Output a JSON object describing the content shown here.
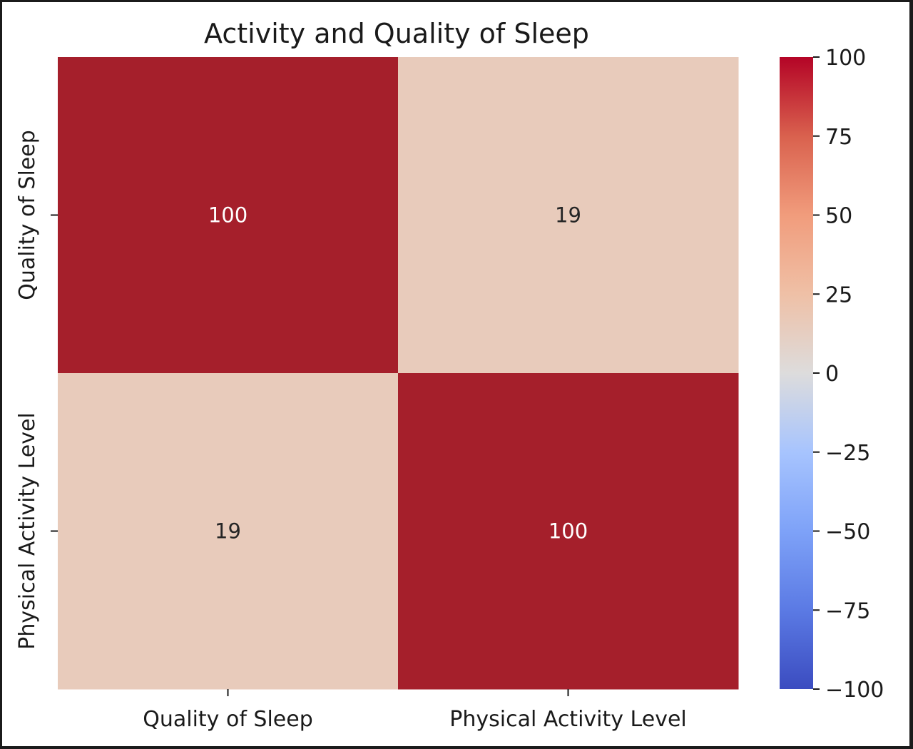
{
  "chart_data": {
    "type": "heatmap",
    "title": "Activity and Quality of Sleep",
    "x_labels": [
      "Quality of Sleep",
      "Physical Activity Level"
    ],
    "y_labels": [
      "Quality of Sleep",
      "Physical Activity Level"
    ],
    "values": [
      [
        100,
        19
      ],
      [
        19,
        100
      ]
    ],
    "cell_labels": [
      [
        "100",
        "19"
      ],
      [
        "19",
        "100"
      ]
    ],
    "colormap": "coolwarm",
    "vmin": -100,
    "vmax": 100,
    "colorbar_ticks": [
      100,
      75,
      50,
      25,
      0,
      -25,
      -50,
      -75,
      -100
    ],
    "colorbar_tick_labels": [
      "100",
      "75",
      "50",
      "25",
      "0",
      "−25",
      "−50",
      "−75",
      "−100"
    ],
    "colors": {
      "high": "#a51f2b",
      "mid_warm": "#e8cbbb",
      "neutral": "#dddcdc",
      "low": "#3b4cc0"
    }
  }
}
